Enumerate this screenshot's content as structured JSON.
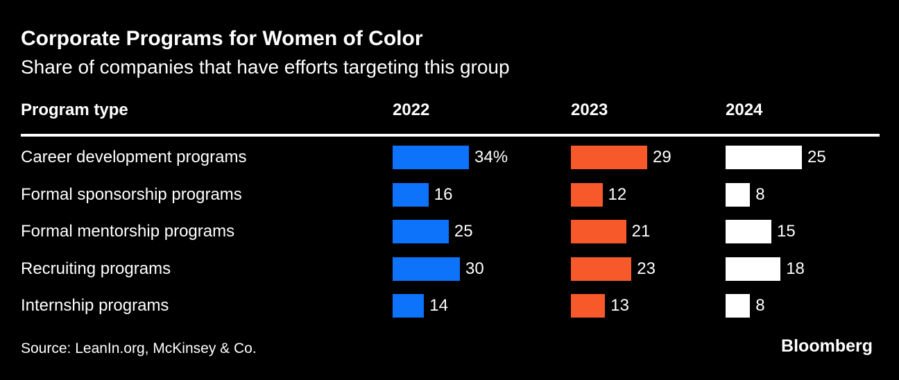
{
  "header": {
    "title": "Corporate Programs for Women of Color",
    "subtitle": "Share of companies that have efforts targeting this group"
  },
  "table": {
    "program_type_label": "Program type",
    "year_headers": [
      "2022",
      "2023",
      "2024"
    ],
    "rows": [
      {
        "label": "Career development programs",
        "cells": [
          {
            "value": 34,
            "label": "34%"
          },
          {
            "value": 29,
            "label": "29"
          },
          {
            "value": 25,
            "label": "25"
          }
        ]
      },
      {
        "label": "Formal sponsorship programs",
        "cells": [
          {
            "value": 16,
            "label": "16"
          },
          {
            "value": 12,
            "label": "12"
          },
          {
            "value": 8,
            "label": "8"
          }
        ]
      },
      {
        "label": "Formal mentorship programs",
        "cells": [
          {
            "value": 25,
            "label": "25"
          },
          {
            "value": 21,
            "label": "21"
          },
          {
            "value": 15,
            "label": "15"
          }
        ]
      },
      {
        "label": "Recruiting programs",
        "cells": [
          {
            "value": 30,
            "label": "30"
          },
          {
            "value": 23,
            "label": "23"
          },
          {
            "value": 18,
            "label": "18"
          }
        ]
      },
      {
        "label": "Internship programs",
        "cells": [
          {
            "value": 14,
            "label": "14"
          },
          {
            "value": 13,
            "label": "13"
          },
          {
            "value": 8,
            "label": "8"
          }
        ]
      }
    ]
  },
  "columns": [
    {
      "year": "2022",
      "color": "#0d73fb"
    },
    {
      "year": "2023",
      "color": "#f8592b"
    },
    {
      "year": "2024",
      "color": "#ffffff"
    }
  ],
  "footer": {
    "source": "Source: LeanIn.org, McKinsey & Co.",
    "brand": "Bloomberg"
  },
  "chart_data": {
    "type": "bar",
    "orientation": "horizontal",
    "title": "Corporate Programs for Women of Color",
    "subtitle": "Share of companies that have efforts targeting this group",
    "categories": [
      "Career development programs",
      "Formal sponsorship programs",
      "Formal mentorship programs",
      "Recruiting programs",
      "Internship programs"
    ],
    "series": [
      {
        "name": "2022",
        "color": "#0d73fb",
        "values": [
          34,
          16,
          25,
          30,
          14
        ]
      },
      {
        "name": "2023",
        "color": "#f8592b",
        "values": [
          29,
          12,
          21,
          23,
          13
        ]
      },
      {
        "name": "2024",
        "color": "#ffffff",
        "values": [
          25,
          8,
          15,
          18,
          8
        ]
      }
    ],
    "unit": "percent",
    "value_labels": true,
    "legend_position": "column-headers",
    "grid": false,
    "background": "#000000",
    "source": "Source: LeanIn.org, McKinsey & Co.",
    "note": "First value labeled with % sign (34%); bars in each year column scaled to that column's maximum"
  }
}
